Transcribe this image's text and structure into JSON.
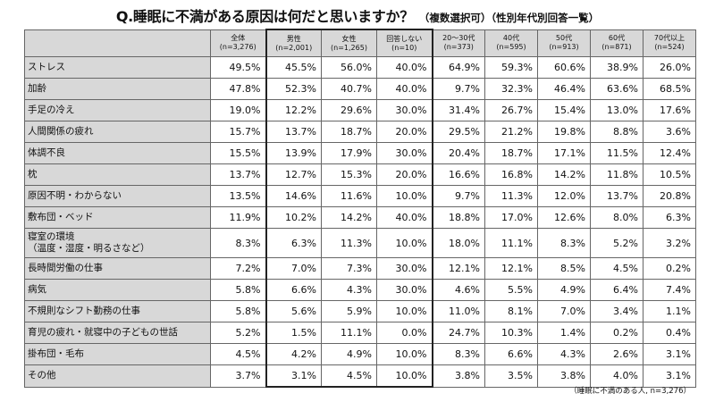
{
  "title": {
    "question": "Q.睡眠に不満がある原因は何だと思いますか？",
    "sub": "（複数選択可）（性別年代別回答一覧）"
  },
  "columns": [
    {
      "label": "全体",
      "n": "(n=3,276)"
    },
    {
      "label": "男性",
      "n": "(n=2,001)"
    },
    {
      "label": "女性",
      "n": "(n=1,265)"
    },
    {
      "label": "回答しない",
      "n": "(n=10)"
    },
    {
      "label": "20～30代",
      "n": "(n=373)"
    },
    {
      "label": "40代",
      "n": "(n=595)"
    },
    {
      "label": "50代",
      "n": "(n=913)"
    },
    {
      "label": "60代",
      "n": "(n=871)"
    },
    {
      "label": "70代以上",
      "n": "(n=524)"
    }
  ],
  "rows": [
    {
      "label": "ストレス",
      "values": [
        "49.5%",
        "45.5%",
        "56.0%",
        "40.0%",
        "64.9%",
        "59.3%",
        "60.6%",
        "38.9%",
        "26.0%"
      ]
    },
    {
      "label": "加齢",
      "values": [
        "47.8%",
        "52.3%",
        "40.7%",
        "40.0%",
        "9.7%",
        "32.3%",
        "46.4%",
        "63.6%",
        "68.5%"
      ]
    },
    {
      "label": "手足の冷え",
      "values": [
        "19.0%",
        "12.2%",
        "29.6%",
        "30.0%",
        "31.4%",
        "26.7%",
        "15.4%",
        "13.0%",
        "17.6%"
      ]
    },
    {
      "label": "人間関係の疲れ",
      "values": [
        "15.7%",
        "13.7%",
        "18.7%",
        "20.0%",
        "29.5%",
        "21.2%",
        "19.8%",
        "8.8%",
        "3.6%"
      ]
    },
    {
      "label": "体調不良",
      "values": [
        "15.5%",
        "13.9%",
        "17.9%",
        "30.0%",
        "20.4%",
        "18.7%",
        "17.1%",
        "11.5%",
        "12.4%"
      ]
    },
    {
      "label": "枕",
      "values": [
        "13.7%",
        "12.7%",
        "15.3%",
        "20.0%",
        "16.6%",
        "16.8%",
        "14.2%",
        "11.8%",
        "10.5%"
      ]
    },
    {
      "label": "原因不明・わからない",
      "values": [
        "13.5%",
        "14.6%",
        "11.6%",
        "10.0%",
        "9.7%",
        "11.3%",
        "12.0%",
        "13.7%",
        "20.8%"
      ]
    },
    {
      "label": "敷布団・ベッド",
      "values": [
        "11.9%",
        "10.2%",
        "14.2%",
        "40.0%",
        "18.8%",
        "17.0%",
        "12.6%",
        "8.0%",
        "6.3%"
      ]
    },
    {
      "label": "寝室の環境",
      "label2": "（温度・湿度・明るさなど）",
      "values": [
        "8.3%",
        "6.3%",
        "11.3%",
        "10.0%",
        "18.0%",
        "11.1%",
        "8.3%",
        "5.2%",
        "3.2%"
      ]
    },
    {
      "label": "長時間労働の仕事",
      "values": [
        "7.2%",
        "7.0%",
        "7.3%",
        "30.0%",
        "12.1%",
        "12.1%",
        "8.5%",
        "4.5%",
        "0.2%"
      ]
    },
    {
      "label": "病気",
      "values": [
        "5.8%",
        "6.6%",
        "4.3%",
        "30.0%",
        "4.6%",
        "5.5%",
        "4.9%",
        "6.4%",
        "7.4%"
      ]
    },
    {
      "label": "不規則なシフト勤務の仕事",
      "values": [
        "5.8%",
        "5.6%",
        "5.9%",
        "10.0%",
        "11.0%",
        "8.1%",
        "7.0%",
        "3.4%",
        "1.1%"
      ]
    },
    {
      "label": "育児の疲れ・就寝中の子どもの世話",
      "values": [
        "5.2%",
        "1.5%",
        "11.1%",
        "0.0%",
        "24.7%",
        "10.3%",
        "1.4%",
        "0.2%",
        "0.4%"
      ]
    },
    {
      "label": "掛布団・毛布",
      "values": [
        "4.5%",
        "4.2%",
        "4.9%",
        "10.0%",
        "8.3%",
        "6.6%",
        "4.3%",
        "2.6%",
        "3.1%"
      ]
    },
    {
      "label": "その他",
      "values": [
        "3.7%",
        "3.1%",
        "4.5%",
        "10.0%",
        "3.8%",
        "3.5%",
        "3.8%",
        "4.0%",
        "3.1%"
      ]
    }
  ],
  "footnote": "（睡眠に不満のある人, n=3,276）"
}
